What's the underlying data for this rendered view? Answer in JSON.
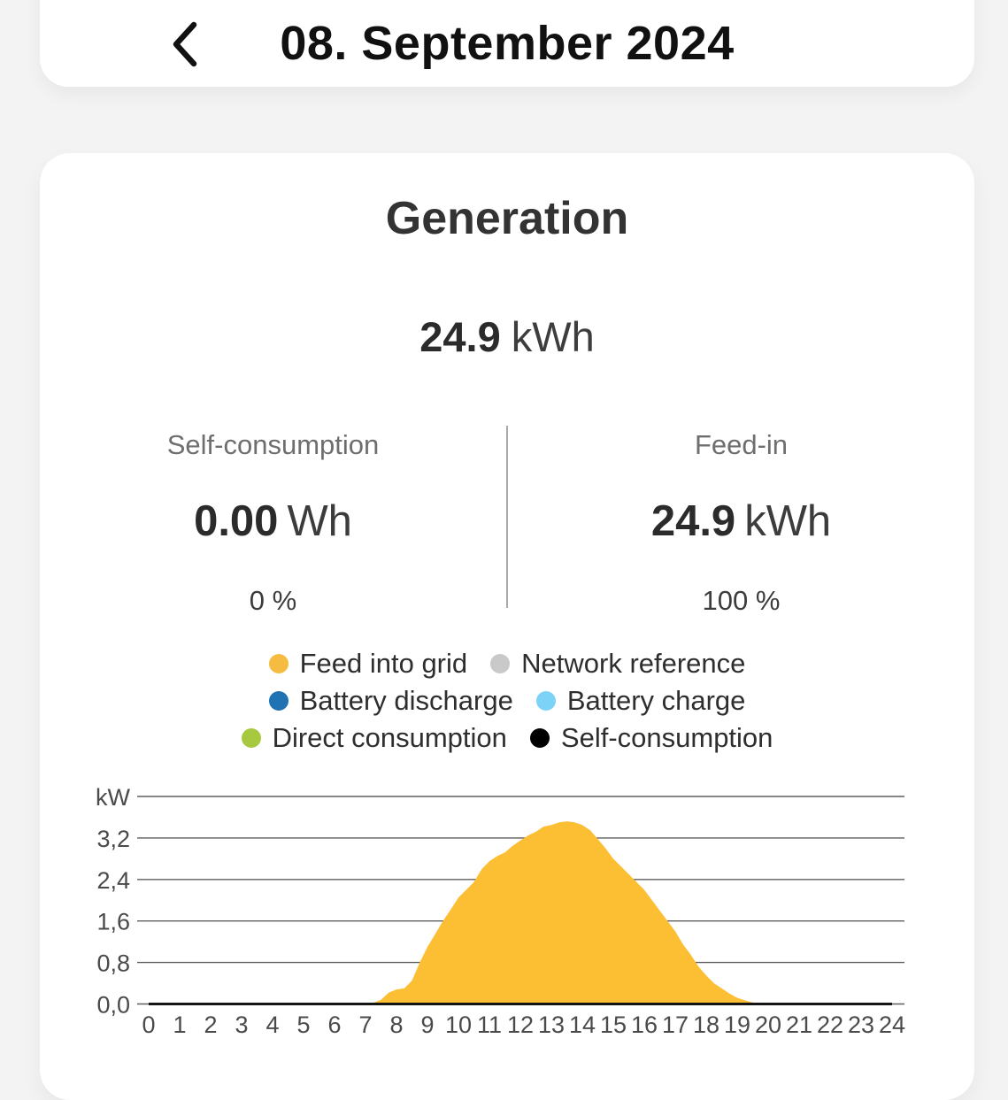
{
  "nav": {
    "title": "08. September 2024",
    "back_icon": "chevron-left"
  },
  "card": {
    "title": "Generation",
    "total": {
      "value": "24.9",
      "unit": "kWh"
    },
    "stats": [
      {
        "label": "Self-consumption",
        "value": "0.00",
        "unit": "Wh",
        "percent": "0 %"
      },
      {
        "label": "Feed-in",
        "value": "24.9",
        "unit": "kWh",
        "percent": "100 %"
      }
    ],
    "legend": [
      {
        "label": "Feed into grid",
        "color": "#F6BC41"
      },
      {
        "label": "Network reference",
        "color": "#C9C9C9"
      },
      {
        "label": "Battery discharge",
        "color": "#1F73B2"
      },
      {
        "label": "Battery charge",
        "color": "#7DD3F7"
      },
      {
        "label": "Direct consumption",
        "color": "#A6C93F"
      },
      {
        "label": "Self-consumption",
        "color": "#000000"
      }
    ]
  },
  "chart_data": {
    "type": "area",
    "title": "Generation power over day",
    "ylabel": "kW",
    "ylim": [
      0,
      4.0
    ],
    "grid": true,
    "ytick_labels": [
      "0,0",
      "0,8",
      "1,6",
      "2,4",
      "3,2",
      "kW"
    ],
    "ytick_values": [
      0,
      0.8,
      1.6,
      2.4,
      3.2,
      4.0
    ],
    "xtick_labels": [
      "0",
      "1",
      "2",
      "3",
      "4",
      "5",
      "6",
      "7",
      "8",
      "9",
      "10",
      "11",
      "12",
      "13",
      "14",
      "15",
      "16",
      "17",
      "18",
      "19",
      "20",
      "21",
      "22",
      "23",
      "24"
    ],
    "xlim": [
      0,
      24
    ],
    "x": [
      0,
      1,
      2,
      3,
      4,
      5,
      6,
      7,
      7.25,
      7.5,
      7.75,
      8,
      8.25,
      8.5,
      8.75,
      9,
      9.25,
      9.5,
      9.75,
      10,
      10.25,
      10.5,
      10.75,
      11,
      11.25,
      11.5,
      11.75,
      12,
      12.25,
      12.5,
      12.75,
      13,
      13.25,
      13.5,
      13.75,
      14,
      14.25,
      14.5,
      14.75,
      15,
      15.25,
      15.5,
      15.75,
      16,
      16.25,
      16.5,
      16.75,
      17,
      17.25,
      17.5,
      17.75,
      18,
      18.25,
      18.5,
      18.75,
      19,
      19.25,
      19.5,
      19.75,
      20,
      21,
      22,
      23,
      24
    ],
    "series": [
      {
        "name": "Feed into grid",
        "color": "#FCBF33",
        "style": "filled-area",
        "values": [
          0,
          0,
          0,
          0,
          0,
          0,
          0,
          0,
          0.02,
          0.08,
          0.22,
          0.28,
          0.3,
          0.45,
          0.8,
          1.1,
          1.35,
          1.6,
          1.82,
          2.05,
          2.2,
          2.35,
          2.6,
          2.75,
          2.85,
          2.92,
          3.05,
          3.15,
          3.25,
          3.32,
          3.42,
          3.45,
          3.5,
          3.52,
          3.5,
          3.45,
          3.35,
          3.18,
          3.0,
          2.8,
          2.65,
          2.5,
          2.35,
          2.2,
          2.0,
          1.8,
          1.6,
          1.4,
          1.15,
          0.95,
          0.72,
          0.55,
          0.4,
          0.3,
          0.2,
          0.12,
          0.07,
          0.03,
          0.01,
          0,
          0,
          0,
          0,
          0
        ]
      },
      {
        "name": "Self-consumption",
        "color": "#141414",
        "style": "line",
        "values": [
          0,
          0,
          0,
          0,
          0,
          0,
          0,
          0,
          0,
          0,
          0,
          0,
          0,
          0,
          0,
          0,
          0,
          0,
          0,
          0,
          0,
          0,
          0,
          0,
          0,
          0,
          0,
          0,
          0,
          0,
          0,
          0,
          0,
          0,
          0,
          0,
          0,
          0,
          0,
          0,
          0,
          0,
          0,
          0,
          0,
          0,
          0,
          0,
          0,
          0,
          0,
          0,
          0,
          0,
          0,
          0,
          0,
          0,
          0,
          0,
          0,
          0,
          0,
          0
        ]
      }
    ],
    "legend_position": "above-chart"
  }
}
